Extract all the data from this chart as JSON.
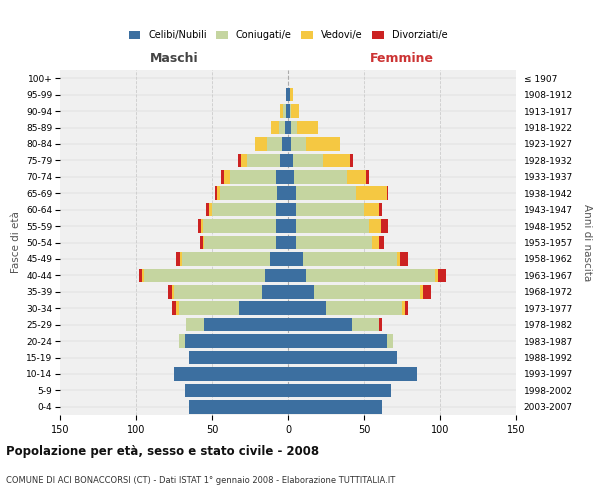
{
  "age_groups": [
    "0-4",
    "5-9",
    "10-14",
    "15-19",
    "20-24",
    "25-29",
    "30-34",
    "35-39",
    "40-44",
    "45-49",
    "50-54",
    "55-59",
    "60-64",
    "65-69",
    "70-74",
    "75-79",
    "80-84",
    "85-89",
    "90-94",
    "95-99",
    "100+"
  ],
  "birth_years": [
    "2003-2007",
    "1998-2002",
    "1993-1997",
    "1988-1992",
    "1983-1987",
    "1978-1982",
    "1973-1977",
    "1968-1972",
    "1963-1967",
    "1958-1962",
    "1953-1957",
    "1948-1952",
    "1943-1947",
    "1938-1942",
    "1933-1937",
    "1928-1932",
    "1923-1927",
    "1918-1922",
    "1913-1917",
    "1908-1912",
    "≤ 1907"
  ],
  "colors": {
    "celibi": "#3c6fa0",
    "coniugati": "#c5d5a0",
    "vedovi": "#f5c842",
    "divorziati": "#cc2222"
  },
  "maschi": {
    "celibi": [
      65,
      68,
      75,
      65,
      68,
      55,
      32,
      17,
      15,
      12,
      8,
      8,
      8,
      7,
      8,
      5,
      4,
      2,
      1,
      1,
      0
    ],
    "coniugati": [
      0,
      0,
      0,
      0,
      4,
      12,
      40,
      58,
      80,
      58,
      47,
      48,
      42,
      38,
      30,
      22,
      10,
      4,
      2,
      0,
      0
    ],
    "vedovi": [
      0,
      0,
      0,
      0,
      0,
      0,
      2,
      1,
      1,
      1,
      1,
      1,
      2,
      2,
      4,
      4,
      8,
      5,
      2,
      0,
      0
    ],
    "divorziati": [
      0,
      0,
      0,
      0,
      0,
      0,
      2,
      3,
      2,
      3,
      2,
      2,
      2,
      1,
      2,
      2,
      0,
      0,
      0,
      0,
      0
    ]
  },
  "femmine": {
    "celibi": [
      62,
      68,
      85,
      72,
      65,
      42,
      25,
      17,
      12,
      10,
      5,
      5,
      5,
      5,
      4,
      3,
      2,
      2,
      1,
      1,
      0
    ],
    "coniugati": [
      0,
      0,
      0,
      0,
      4,
      18,
      50,
      70,
      85,
      62,
      50,
      48,
      45,
      40,
      35,
      20,
      10,
      4,
      1,
      0,
      0
    ],
    "vedovi": [
      0,
      0,
      0,
      0,
      0,
      0,
      2,
      2,
      2,
      2,
      5,
      8,
      10,
      20,
      12,
      18,
      22,
      14,
      5,
      2,
      0
    ],
    "divorziati": [
      0,
      0,
      0,
      0,
      0,
      2,
      2,
      5,
      5,
      5,
      3,
      5,
      2,
      1,
      2,
      2,
      0,
      0,
      0,
      0,
      0
    ]
  },
  "xlim": 150,
  "title": "Popolazione per età, sesso e stato civile - 2008",
  "subtitle": "COMUNE DI ACI BONACCORSI (CT) - Dati ISTAT 1° gennaio 2008 - Elaborazione TUTTITALIA.IT",
  "xlabel_left": "Maschi",
  "xlabel_right": "Femmine",
  "ylabel_left": "Fasce di età",
  "ylabel_right": "Anni di nascita",
  "legend_labels": [
    "Celibi/Nubili",
    "Coniugati/e",
    "Vedovi/e",
    "Divorziati/e"
  ],
  "bg_color": "#f0f0f0",
  "grid_color": "#cccccc"
}
